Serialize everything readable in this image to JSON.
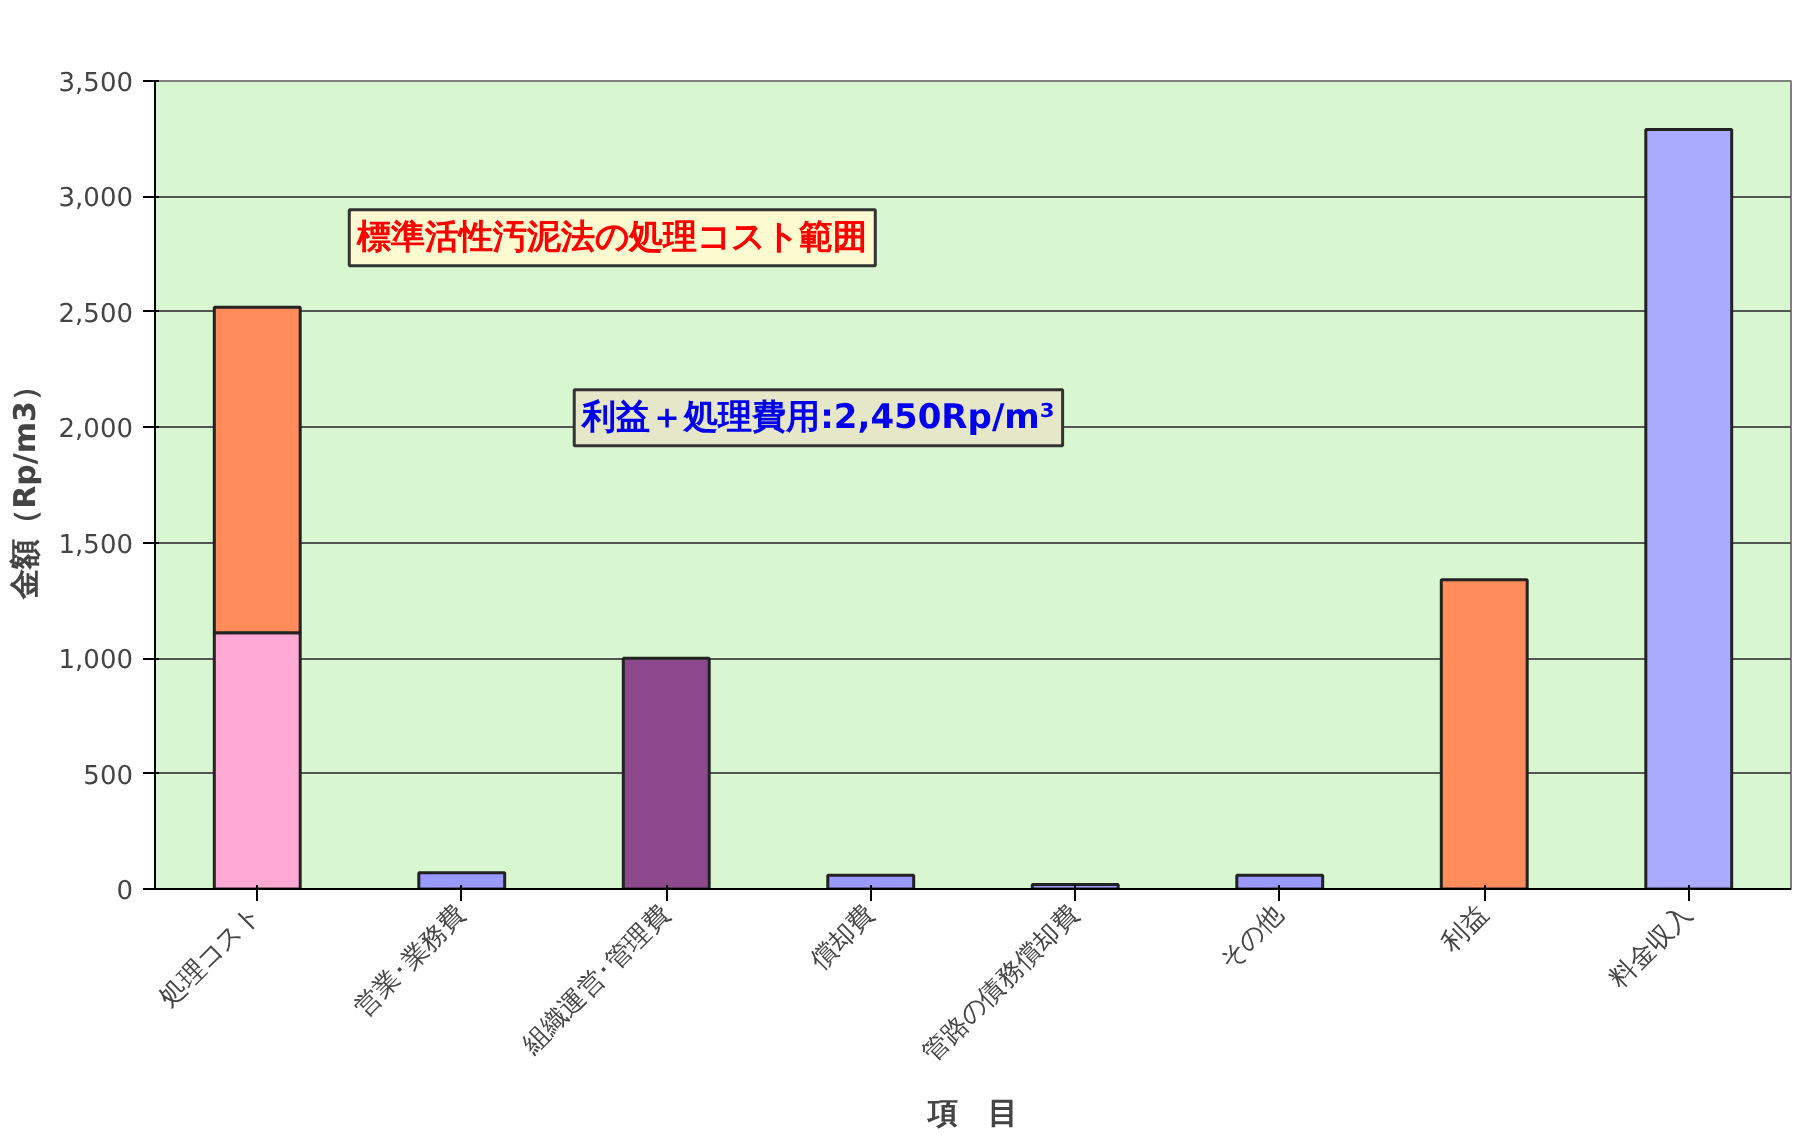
{
  "chart_data": {
    "type": "bar",
    "stacked": true,
    "xlabel": "項　目",
    "ylabel": "金額（Rp/m3）",
    "categories": [
      "処理コスト",
      "営業･業務費",
      "組織運営･管理費",
      "償却費",
      "管路の債務償却費",
      "その他",
      "利益",
      "料金収入"
    ],
    "series": [
      {
        "colors": [
          "#ffaad4",
          "#9999ff",
          "#8c4a8c",
          "#9999ff",
          "#9999ff",
          "#9999ff",
          "#ff8c5a",
          "#aaaaff"
        ],
        "values": [
          1110,
          70,
          1000,
          60,
          20,
          60,
          1340,
          3290
        ]
      },
      {
        "color": "#ff8c5a",
        "values": [
          1410,
          null,
          null,
          null,
          null,
          null,
          null,
          null
        ]
      }
    ],
    "ylim": [
      0,
      3500
    ],
    "yticks": [
      0,
      500,
      {
        "value": 1000,
        "label": "1,000"
      },
      {
        "value": 1500,
        "label": "1,500"
      },
      {
        "value": 2000,
        "label": "2,000"
      },
      {
        "value": 2500,
        "label": "2,500"
      },
      {
        "value": 3000,
        "label": "3,000"
      },
      {
        "value": 3500,
        "label": "3,500"
      }
    ],
    "grid": "y",
    "annotations": [
      "標準活性汚泥法の処理コスト範囲",
      "利益＋処理費用:2,450Rp/m³"
    ]
  }
}
